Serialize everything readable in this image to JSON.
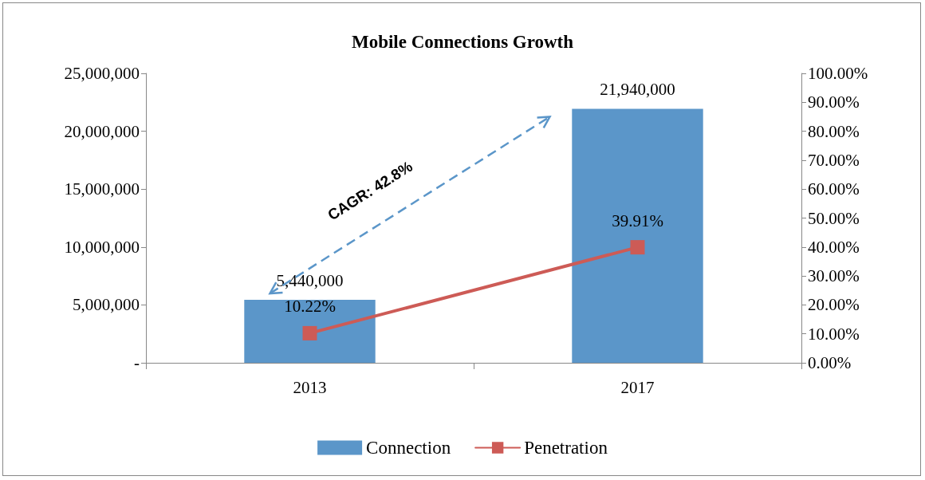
{
  "chart_data": {
    "type": "bar",
    "title": "Mobile Connections Growth",
    "categories": [
      "2013",
      "2017"
    ],
    "series": [
      {
        "name": "Connection",
        "color": "#5b96c9",
        "values": [
          5440000,
          21940000
        ],
        "value_labels": [
          "5,440,000",
          "21,940,000"
        ]
      },
      {
        "name": "Penetration",
        "type": "line",
        "axis": "y2",
        "color": "#cd5b56",
        "values": [
          10.22,
          39.91
        ],
        "value_labels": [
          "10.22%",
          "39.91%"
        ],
        "marker": "square",
        "line_style": "solid"
      }
    ],
    "ylim": [
      0,
      25000000
    ],
    "yticks": [
      {
        "value": 0,
        "label": "-"
      },
      {
        "value": 5000000,
        "label": "5,000,000"
      },
      {
        "value": 10000000,
        "label": "10,000,000"
      },
      {
        "value": 15000000,
        "label": "15,000,000"
      },
      {
        "value": 20000000,
        "label": "20,000,000"
      },
      {
        "value": 25000000,
        "label": "25,000,000"
      }
    ],
    "y2lim": [
      0,
      100
    ],
    "y2ticks": [
      {
        "value": 0,
        "label": "0.00%"
      },
      {
        "value": 10,
        "label": "10.00%"
      },
      {
        "value": 20,
        "label": "20.00%"
      },
      {
        "value": 30,
        "label": "30.00%"
      },
      {
        "value": 40,
        "label": "40.00%"
      },
      {
        "value": 50,
        "label": "50.00%"
      },
      {
        "value": 60,
        "label": "60.00%"
      },
      {
        "value": 70,
        "label": "70.00%"
      },
      {
        "value": 80,
        "label": "80.00%"
      },
      {
        "value": 90,
        "label": "90.00%"
      },
      {
        "value": 100,
        "label": "100.00%"
      }
    ],
    "annotations": [
      "CAGR: 42.8%"
    ],
    "grid": false,
    "legend": "bottom"
  }
}
